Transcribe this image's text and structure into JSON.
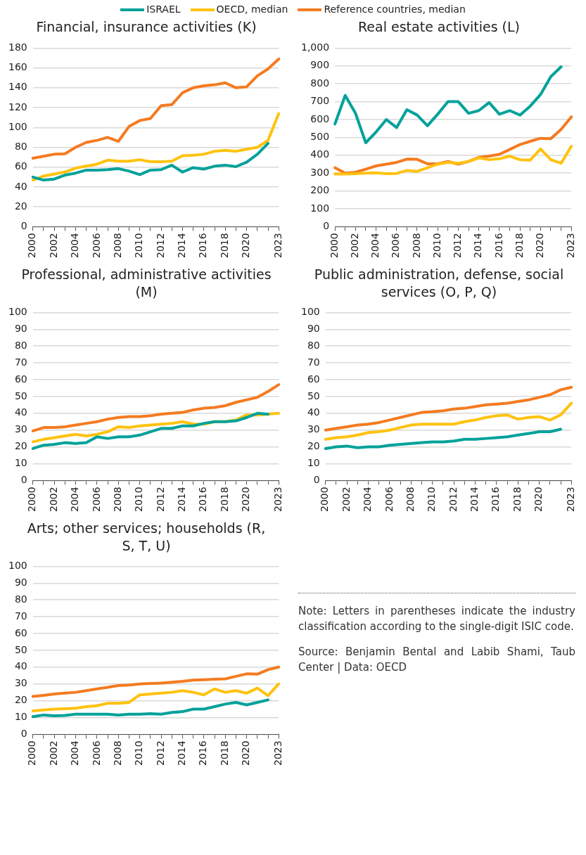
{
  "chart_data": [
    {
      "type": "line",
      "title": "Financial, insurance activities (K)",
      "categories": [
        "2000",
        null,
        "2002",
        null,
        "2004",
        null,
        "2006",
        null,
        "2008",
        null,
        "2010",
        null,
        "2012",
        null,
        "2014",
        null,
        "2016",
        null,
        "2018",
        null,
        "2020",
        null,
        null,
        "2023"
      ],
      "series": [
        {
          "name": "ISRAEL",
          "color": "#00a19a",
          "values": [
            50,
            47,
            48,
            52,
            54,
            57,
            57,
            57.5,
            58.5,
            56,
            52.5,
            57,
            57.5,
            62,
            55,
            59.5,
            58,
            61,
            62,
            60.5,
            65,
            73,
            84,
            null
          ]
        },
        {
          "name": "OECD, median",
          "color": "#ffc20e",
          "values": [
            47,
            51,
            53,
            55,
            59,
            61,
            63,
            67,
            66,
            66,
            67.5,
            65.5,
            65.5,
            66,
            71.5,
            72,
            73,
            76,
            77,
            76,
            78,
            80,
            87,
            114
          ]
        },
        {
          "name": "Reference countries, median",
          "color": "#f47b20",
          "values": [
            69,
            71,
            73,
            73.5,
            80,
            85,
            87,
            90,
            86,
            101,
            107,
            109,
            122,
            123,
            135,
            140,
            142,
            143,
            145,
            140,
            141,
            152,
            159,
            169
          ]
        }
      ],
      "ylim": [
        0,
        180
      ],
      "yticks": [
        0,
        20,
        40,
        60,
        80,
        100,
        120,
        140,
        160,
        180
      ],
      "grid": "y",
      "legend": "top",
      "marker": "none",
      "line_style": "solid"
    },
    {
      "type": "line",
      "title": "Real estate activities (L)",
      "categories": [
        "2000",
        null,
        "2002",
        null,
        "2004",
        null,
        "2006",
        null,
        "2008",
        null,
        "2010",
        null,
        "2012",
        null,
        "2014",
        null,
        "2016",
        null,
        "2018",
        null,
        "2020",
        null,
        null,
        "2023"
      ],
      "series": [
        {
          "color": "#00a19a",
          "values": [
            575,
            735,
            635,
            470,
            530,
            600,
            555,
            655,
            625,
            565,
            630,
            700,
            700,
            635,
            650,
            695,
            630,
            650,
            625,
            675,
            740,
            840,
            895,
            null
          ]
        },
        {
          "color": "#ffc20e",
          "values": [
            295,
            295,
            297,
            300,
            302,
            297,
            298,
            315,
            310,
            330,
            350,
            360,
            355,
            365,
            385,
            375,
            380,
            395,
            375,
            373,
            435,
            375,
            355,
            450
          ]
        },
        {
          "color": "#f47b20",
          "values": [
            330,
            300,
            305,
            322,
            340,
            350,
            360,
            378,
            377,
            352,
            352,
            365,
            350,
            365,
            388,
            395,
            405,
            432,
            460,
            478,
            495,
            493,
            545,
            615
          ]
        }
      ],
      "ylim": [
        0,
        1000
      ],
      "yticks": [
        0,
        100,
        200,
        300,
        400,
        500,
        600,
        700,
        800,
        900,
        {
          "value": 1000,
          "label": "1,000"
        }
      ],
      "grid": "y",
      "marker": "none",
      "line_style": "solid"
    },
    {
      "type": "line",
      "title": "Professional, administrative activities (M)",
      "categories": [
        "2000",
        null,
        "2002",
        null,
        "2004",
        null,
        "2006",
        null,
        "2008",
        null,
        "2010",
        null,
        "2012",
        null,
        "2014",
        null,
        "2016",
        null,
        "2018",
        null,
        "2020",
        null,
        null,
        "2023"
      ],
      "series": [
        {
          "color": "#00a19a",
          "values": [
            19,
            21,
            21.5,
            22.5,
            22,
            22.5,
            26,
            25,
            26,
            26,
            27,
            29,
            31,
            31,
            32.5,
            32.5,
            34,
            35,
            35,
            35.5,
            37.5,
            40,
            39.5,
            null
          ]
        },
        {
          "color": "#ffc20e",
          "values": [
            23,
            24.5,
            25.5,
            26.5,
            27.5,
            26.5,
            27.5,
            29,
            32,
            31.5,
            32.5,
            33,
            33.5,
            34,
            35,
            33.5,
            33.5,
            35,
            35,
            36,
            39,
            39,
            39.5,
            40
          ]
        },
        {
          "color": "#f47b20",
          "values": [
            29.5,
            31.5,
            31.5,
            32,
            33,
            34,
            35,
            36.5,
            37.5,
            38,
            38,
            38.5,
            39.5,
            40,
            40.5,
            42,
            43,
            43.5,
            44.5,
            46.5,
            48,
            49.5,
            53,
            57
          ]
        }
      ],
      "ylim": [
        0,
        100
      ],
      "yticks": [
        0,
        10,
        20,
        30,
        40,
        50,
        60,
        70,
        80,
        90,
        100
      ],
      "grid": "y",
      "marker": "none",
      "line_style": "solid"
    },
    {
      "type": "line",
      "title": "Public administration, defense, social services (O, P, Q)",
      "categories": [
        "2000",
        null,
        "2002",
        null,
        "2004",
        null,
        "2006",
        null,
        "2008",
        null,
        "2010",
        null,
        "2012",
        null,
        "2014",
        null,
        "2016",
        null,
        "2018",
        null,
        "2020",
        null,
        null,
        "2023"
      ],
      "series": [
        {
          "color": "#00a19a",
          "values": [
            19,
            20,
            20.5,
            19.5,
            20,
            20,
            21,
            21.5,
            22,
            22.5,
            23,
            23,
            23.5,
            24.5,
            24.5,
            25,
            25.5,
            26,
            27,
            28,
            29,
            29,
            30.5,
            null
          ]
        },
        {
          "color": "#ffc20e",
          "values": [
            24.5,
            25.5,
            26,
            27,
            28.5,
            29,
            30,
            31.5,
            33,
            33.5,
            33.5,
            33.5,
            33.5,
            35,
            36,
            37.5,
            38.5,
            39,
            36.5,
            37.5,
            38,
            36,
            39,
            46
          ]
        },
        {
          "color": "#f47b20",
          "values": [
            30,
            31,
            32,
            33,
            33.5,
            34.5,
            36,
            37.5,
            39,
            40.5,
            41,
            41.5,
            42.5,
            43,
            44,
            45,
            45.5,
            46,
            47,
            48,
            49.5,
            51,
            54,
            55.5
          ]
        }
      ],
      "ylim": [
        0,
        100
      ],
      "yticks": [
        0,
        10,
        20,
        30,
        40,
        50,
        60,
        70,
        80,
        90,
        100
      ],
      "grid": "y",
      "marker": "none",
      "line_style": "solid"
    },
    {
      "type": "line",
      "title": "Arts; other services; households (R, S, T, U)",
      "categories": [
        "2000",
        null,
        "2002",
        null,
        "2004",
        null,
        "2006",
        null,
        "2008",
        null,
        "2010",
        null,
        "2012",
        null,
        "2014",
        null,
        "2016",
        null,
        "2018",
        null,
        "2020",
        null,
        null,
        "2023"
      ],
      "series": [
        {
          "color": "#00a19a",
          "values": [
            10.5,
            11.5,
            11,
            11.2,
            12,
            12,
            12,
            12,
            11.5,
            12,
            12,
            12.3,
            12,
            13,
            13.5,
            15,
            15,
            16.5,
            18,
            19,
            17.5,
            19,
            20.5,
            null
          ]
        },
        {
          "color": "#ffc20e",
          "values": [
            14,
            14.5,
            15,
            15.2,
            15.5,
            16.5,
            17,
            18.5,
            18.5,
            19,
            23.5,
            24,
            24.5,
            25,
            26,
            25,
            23.5,
            27,
            25,
            26,
            24.5,
            27.5,
            23,
            30
          ]
        },
        {
          "color": "#f47b20",
          "values": [
            22.5,
            23.2,
            24,
            24.5,
            25,
            26,
            27,
            28,
            29,
            29.3,
            30,
            30.3,
            30.5,
            31,
            31.5,
            32.3,
            32.5,
            32.8,
            33,
            34.5,
            36,
            35.8,
            38.5,
            40
          ]
        }
      ],
      "ylim": [
        0,
        100
      ],
      "yticks": [
        0,
        10,
        20,
        30,
        40,
        50,
        60,
        70,
        80,
        90,
        100
      ],
      "grid": "y",
      "marker": "none",
      "line_style": "solid",
      "annotations": [
        "Note: Letters in parentheses indicate the industry classification according to the single-digit ISIC code.",
        "Source: Benjamin Bental and Labib Shami, Taub Center | Data: OECD"
      ]
    }
  ]
}
